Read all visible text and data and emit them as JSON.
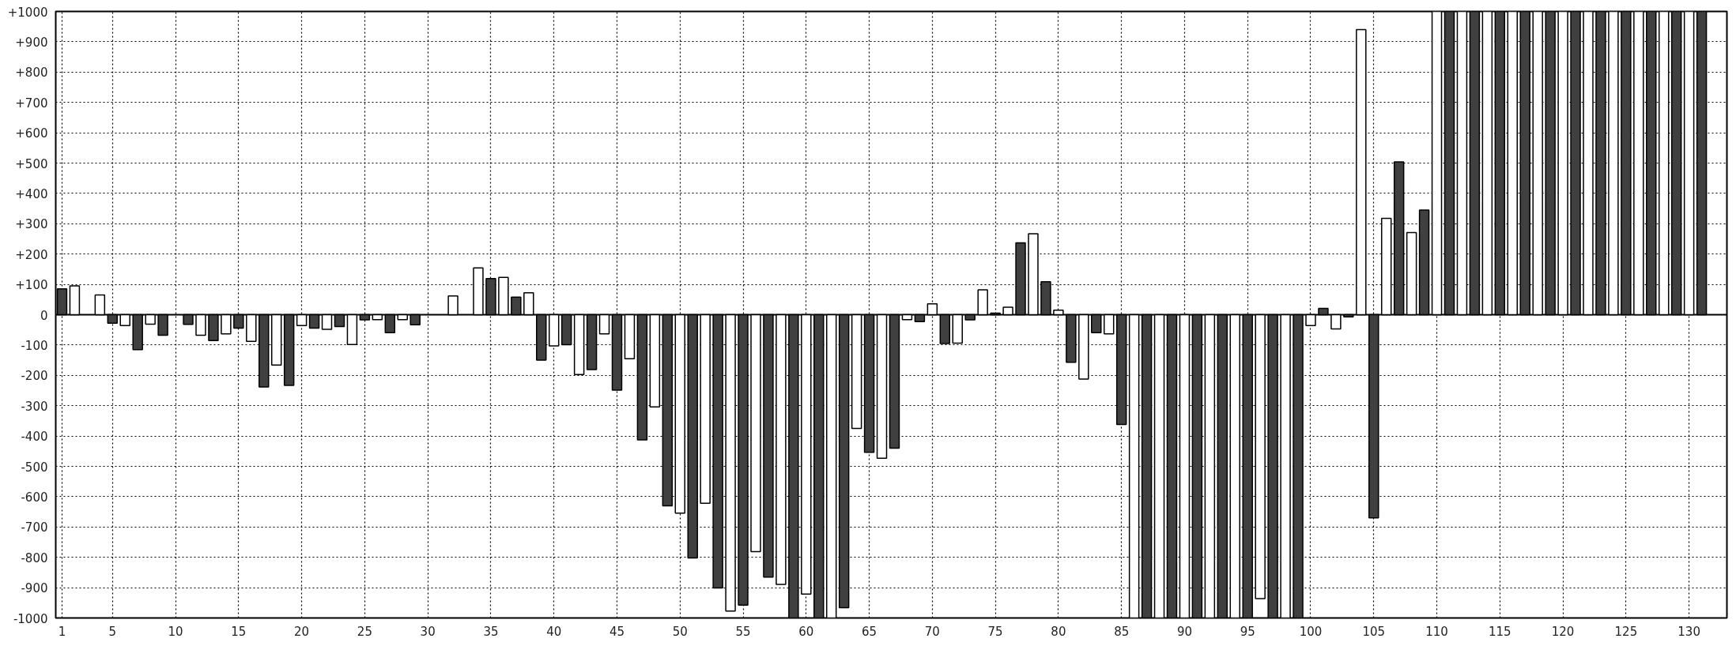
{
  "chart_data": {
    "type": "bar",
    "x": [
      1,
      2,
      3,
      4,
      5,
      6,
      7,
      8,
      9,
      10,
      11,
      12,
      13,
      14,
      15,
      16,
      17,
      18,
      19,
      20,
      21,
      22,
      23,
      24,
      25,
      26,
      27,
      28,
      29,
      30,
      31,
      32,
      33,
      34,
      35,
      36,
      37,
      38,
      39,
      40,
      41,
      42,
      43,
      44,
      45,
      46,
      47,
      48,
      49,
      50,
      51,
      52,
      53,
      54,
      55,
      56,
      57,
      58,
      59,
      60,
      61,
      62,
      63,
      64,
      65,
      66,
      67,
      68,
      69,
      70,
      71,
      72,
      73,
      74,
      75,
      76,
      77,
      78,
      79,
      80,
      81,
      82,
      83,
      84,
      85,
      86,
      87,
      88,
      89,
      90,
      91,
      92,
      93,
      94,
      95,
      96,
      97,
      98,
      99,
      100,
      101,
      102,
      103,
      104,
      105,
      106,
      107,
      108,
      109,
      110,
      111,
      112,
      113,
      114,
      115,
      116,
      117,
      118,
      119,
      120,
      121,
      122,
      123,
      124,
      125,
      126,
      127,
      128,
      129,
      130,
      131
    ],
    "values": [
      85,
      95,
      null,
      65,
      -28,
      -36,
      -115,
      -31,
      -68,
      null,
      -32,
      -68,
      -85,
      -63,
      -44,
      -88,
      -238,
      -166,
      -233,
      -36,
      -44,
      -48,
      -39,
      -98,
      -17,
      -16,
      -59,
      -16,
      -33,
      null,
      null,
      62,
      null,
      154,
      119,
      123,
      58,
      72,
      -150,
      -103,
      -99,
      -197,
      -181,
      -63,
      -249,
      -145,
      -413,
      -304,
      -630,
      -654,
      -802,
      -622,
      -901,
      -977,
      -958,
      -781,
      -865,
      -889,
      -1000,
      -921,
      -1000,
      -1000,
      -966,
      -375,
      -454,
      -473,
      -440,
      -16,
      -23,
      36,
      -95,
      -94,
      -17,
      82,
      5,
      25,
      237,
      267,
      109,
      15,
      -157,
      -212,
      -59,
      -63,
      -362,
      -1000,
      -1000,
      -1000,
      -1000,
      -1000,
      -1000,
      -1000,
      -1000,
      -1000,
      -1000,
      -936,
      -1000,
      -1000,
      -1000,
      -36,
      21,
      -47,
      -7,
      940,
      -670,
      318,
      504,
      271,
      345,
      1000,
      1000,
      1000,
      1000,
      1000,
      1000,
      1000,
      1000,
      1000,
      1000,
      1000,
      1000,
      1000,
      1000,
      1000,
      1000,
      1000,
      1000,
      1000,
      1000,
      1000,
      1000
    ],
    "colors": [
      "#404040",
      "#ffffff",
      "#404040",
      "#ffffff",
      "#404040",
      "#ffffff",
      "#404040",
      "#ffffff",
      "#404040",
      "#ffffff",
      "#404040",
      "#ffffff",
      "#404040",
      "#ffffff",
      "#404040",
      "#ffffff",
      "#404040",
      "#ffffff",
      "#404040",
      "#ffffff",
      "#404040",
      "#ffffff",
      "#404040",
      "#ffffff",
      "#404040",
      "#ffffff",
      "#404040",
      "#ffffff",
      "#404040",
      "#ffffff",
      "#404040",
      "#ffffff",
      "#404040",
      "#ffffff",
      "#404040",
      "#ffffff",
      "#404040",
      "#ffffff",
      "#404040",
      "#ffffff",
      "#404040",
      "#ffffff",
      "#404040",
      "#ffffff",
      "#404040",
      "#ffffff",
      "#404040",
      "#ffffff",
      "#404040",
      "#ffffff",
      "#404040",
      "#ffffff",
      "#404040",
      "#ffffff",
      "#404040",
      "#ffffff",
      "#404040",
      "#ffffff",
      "#404040",
      "#ffffff",
      "#404040",
      "#ffffff",
      "#404040",
      "#ffffff",
      "#404040",
      "#ffffff",
      "#404040",
      "#ffffff",
      "#404040",
      "#ffffff",
      "#404040",
      "#ffffff",
      "#404040",
      "#ffffff",
      "#404040",
      "#ffffff",
      "#404040",
      "#ffffff",
      "#404040",
      "#ffffff",
      "#404040",
      "#ffffff",
      "#404040",
      "#ffffff",
      "#404040",
      "#ffffff",
      "#404040",
      "#ffffff",
      "#404040",
      "#ffffff",
      "#404040",
      "#ffffff",
      "#404040",
      "#ffffff",
      "#404040",
      "#ffffff",
      "#404040",
      "#ffffff",
      "#404040",
      "#ffffff",
      "#404040",
      "#ffffff",
      "#404040",
      "#ffffff",
      "#404040",
      "#ffffff",
      "#404040",
      "#ffffff",
      "#404040",
      "#ffffff",
      "#404040",
      "#ffffff",
      "#404040",
      "#ffffff",
      "#404040",
      "#ffffff",
      "#404040",
      "#ffffff",
      "#404040",
      "#ffffff",
      "#404040",
      "#ffffff",
      "#404040",
      "#ffffff",
      "#404040",
      "#ffffff",
      "#404040",
      "#ffffff",
      "#404040",
      "#ffffff",
      "#404040"
    ],
    "xlim": [
      0.5,
      133
    ],
    "xticks": [
      1,
      5,
      10,
      15,
      20,
      25,
      30,
      35,
      40,
      45,
      50,
      55,
      60,
      65,
      70,
      75,
      80,
      85,
      90,
      95,
      100,
      105,
      110,
      115,
      120,
      125,
      130
    ],
    "ylim": [
      -1000,
      1000
    ],
    "yticks": [
      {
        "value": -1000,
        "label": "-1000"
      },
      {
        "value": -900,
        "label": "-900"
      },
      {
        "value": -800,
        "label": "-800"
      },
      {
        "value": -700,
        "label": "-700"
      },
      {
        "value": -600,
        "label": "-600"
      },
      {
        "value": -500,
        "label": "-500"
      },
      {
        "value": -400,
        "label": "-400"
      },
      {
        "value": -300,
        "label": "-300"
      },
      {
        "value": -200,
        "label": "-200"
      },
      {
        "value": -100,
        "label": "-100"
      },
      0,
      {
        "value": 100,
        "label": "+100"
      },
      {
        "value": 200,
        "label": "+200"
      },
      {
        "value": 300,
        "label": "+300"
      },
      {
        "value": 400,
        "label": "+400"
      },
      {
        "value": 500,
        "label": "+500"
      },
      {
        "value": 600,
        "label": "+600"
      },
      {
        "value": 700,
        "label": "+700"
      },
      {
        "value": 800,
        "label": "+800"
      },
      {
        "value": 900,
        "label": "+900"
      },
      {
        "value": 1000,
        "label": "+1000"
      }
    ],
    "grid": true,
    "line_style": "dotted"
  }
}
